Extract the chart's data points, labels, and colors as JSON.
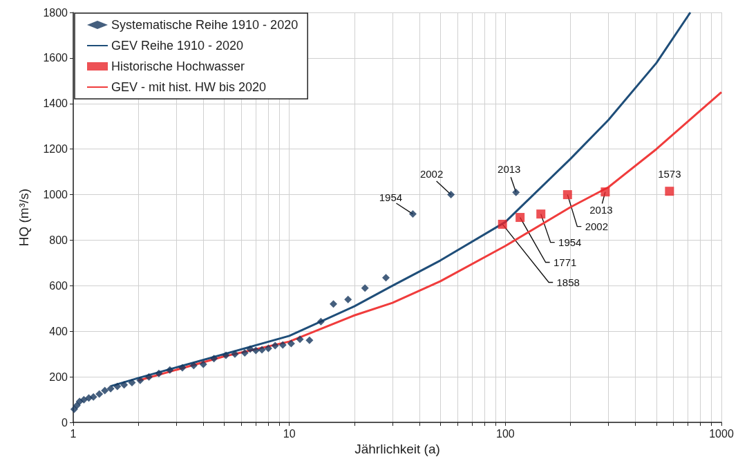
{
  "chart_data": {
    "type": "scatter",
    "xlabel": "Jährlichkeit (a)",
    "ylabel": "HQ (m³/s)",
    "log": "x",
    "grid": true,
    "legend": "top left",
    "xlim": [
      1,
      1000
    ],
    "ylim": [
      0,
      1800
    ],
    "xticks": [
      1,
      {
        "value": 2,
        "label": null
      },
      {
        "value": 3,
        "label": null
      },
      {
        "value": 4,
        "label": null
      },
      {
        "value": 5,
        "label": null
      },
      {
        "value": 6,
        "label": null
      },
      {
        "value": 7,
        "label": null
      },
      {
        "value": 8,
        "label": null
      },
      {
        "value": 9,
        "label": null
      },
      10,
      {
        "value": 20,
        "label": null
      },
      {
        "value": 30,
        "label": null
      },
      {
        "value": 40,
        "label": null
      },
      {
        "value": 50,
        "label": null
      },
      {
        "value": 60,
        "label": null
      },
      {
        "value": 70,
        "label": null
      },
      {
        "value": 80,
        "label": null
      },
      {
        "value": 90,
        "label": null
      },
      100,
      {
        "value": 200,
        "label": null
      },
      {
        "value": 300,
        "label": null
      },
      {
        "value": 400,
        "label": null
      },
      {
        "value": 500,
        "label": null
      },
      {
        "value": 600,
        "label": null
      },
      {
        "value": 700,
        "label": null
      },
      {
        "value": 800,
        "label": null
      },
      {
        "value": 900,
        "label": null
      },
      1000
    ],
    "yticks": [
      0,
      200,
      400,
      600,
      800,
      1000,
      1200,
      1400,
      1600,
      1800
    ],
    "series": [
      {
        "name": "Systematische Reihe 1910 - 2020",
        "marker": "diamond",
        "color": "#17375e",
        "x": [
          112,
          56,
          37.3,
          28,
          22.4,
          18.7,
          16,
          14,
          12.4,
          11.2,
          10.2,
          9.33,
          8.6,
          8,
          7.47,
          7,
          6.59,
          6.22,
          5.6,
          5.09,
          4.48,
          4,
          3.61,
          3.2,
          2.8,
          2.49,
          2.24,
          2.04,
          1.87,
          1.72,
          1.6,
          1.49,
          1.4,
          1.32,
          1.24,
          1.18,
          1.12,
          1.07,
          1.04,
          1.01
        ],
        "values": [
          1010,
          1000,
          915,
          635,
          590,
          540,
          520,
          443,
          361,
          365,
          346,
          340,
          337,
          325,
          319,
          316,
          322,
          305,
          300,
          295,
          280,
          255,
          250,
          240,
          230,
          215,
          200,
          185,
          175,
          165,
          158,
          148,
          140,
          125,
          112,
          107,
          100,
          92,
          75,
          58
        ]
      },
      {
        "name": "GEV Reihe 1910 - 2020",
        "type": "line",
        "marker": "none",
        "color": "#1f4e79",
        "x": [
          1.5,
          2,
          5,
          10,
          20,
          30,
          50,
          100,
          200,
          300,
          500,
          718
        ],
        "values": [
          160,
          195,
          300,
          380,
          510,
          600,
          711,
          880,
          1157,
          1328,
          1578,
          1800
        ]
      },
      {
        "name": "Historische Hochwasser",
        "marker": "square",
        "color": "#e8262b",
        "x": [
          97,
          117,
          146,
          194,
          290,
          575
        ],
        "values": [
          870,
          900,
          915,
          1000,
          1012,
          1015
        ]
      },
      {
        "name": "GEV - mit hist. HW bis 2020",
        "type": "line",
        "marker": "none",
        "color": "#f03c3c",
        "x": [
          2,
          5,
          10,
          20,
          30,
          50,
          100,
          200,
          300,
          500,
          1000
        ],
        "values": [
          184,
          290,
          355,
          470,
          525,
          620,
          775,
          945,
          1033,
          1200,
          1450
        ]
      }
    ],
    "annotations": [
      {
        "text": "1954",
        "x": 37.3,
        "y": 915
      },
      {
        "text": "2002",
        "x": 56,
        "y": 1000
      },
      {
        "text": "2013",
        "x": 112,
        "y": 1010
      },
      {
        "text": "1858",
        "x": 97,
        "y": 870
      },
      {
        "text": "1771",
        "x": 117,
        "y": 900
      },
      {
        "text": "1954",
        "x": 146,
        "y": 915
      },
      {
        "text": "2002",
        "x": 194,
        "y": 1000
      },
      {
        "text": "2013",
        "x": 290,
        "y": 1012
      },
      {
        "text": "1573",
        "x": 575,
        "y": 1015
      }
    ]
  }
}
